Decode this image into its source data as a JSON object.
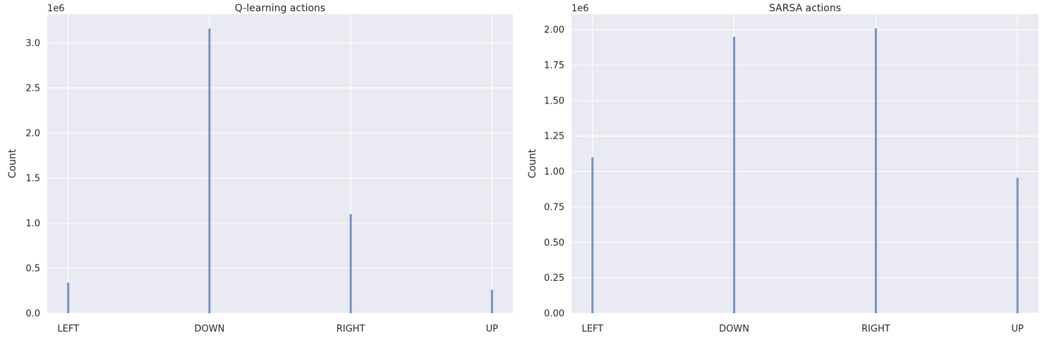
{
  "chart_data": [
    {
      "type": "bar",
      "title": "Q-learning actions",
      "xlabel": "",
      "ylabel": "Count",
      "y_offset_label": "1e6",
      "categories": [
        "LEFT",
        "DOWN",
        "RIGHT",
        "UP"
      ],
      "values": [
        340000,
        3160000,
        1100000,
        260000
      ],
      "ylim": [
        0,
        3320000
      ],
      "yticks": [
        0,
        500000,
        1000000,
        1500000,
        2000000,
        2500000,
        3000000
      ],
      "ytick_labels": [
        "0.0",
        "0.5",
        "1.0",
        "1.5",
        "2.0",
        "2.5",
        "3.0"
      ],
      "grid": true,
      "bar_color": "#4c72b0",
      "background_color": "#eaeaf2"
    },
    {
      "type": "bar",
      "title": "SARSA actions",
      "xlabel": "",
      "ylabel": "Count",
      "y_offset_label": "1e6",
      "categories": [
        "LEFT",
        "DOWN",
        "RIGHT",
        "UP"
      ],
      "values": [
        1100000,
        1950000,
        2010000,
        955000
      ],
      "ylim": [
        0,
        2110000
      ],
      "yticks": [
        0,
        250000,
        500000,
        750000,
        1000000,
        1250000,
        1500000,
        1750000,
        2000000
      ],
      "ytick_labels": [
        "0.00",
        "0.25",
        "0.50",
        "0.75",
        "1.00",
        "1.25",
        "1.50",
        "1.75",
        "2.00"
      ],
      "grid": true,
      "bar_color": "#4c72b0",
      "background_color": "#eaeaf2"
    }
  ]
}
